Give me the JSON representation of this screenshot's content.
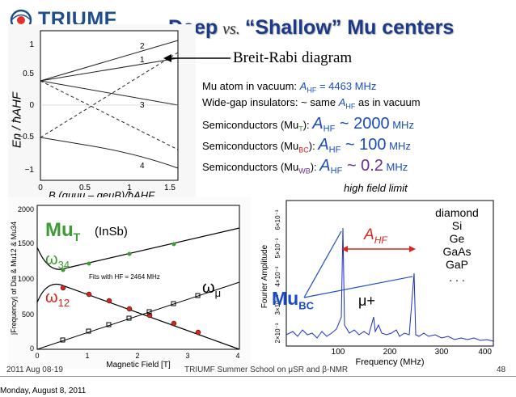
{
  "logo": {
    "name": "TRIUMF"
  },
  "title": {
    "deep": "Deep",
    "vs": "vs.",
    "shallow": "“Shallow” Mu centers"
  },
  "breit_rabi_label": "Breit-Rabi diagram",
  "info": {
    "line1_pre": "Mu atom in vacuum: ",
    "line1_a": "A",
    "line1_sub": "HF",
    "line1_val": " = 4463 MHz",
    "line2_pre": "Wide-gap insulators: ~ same ",
    "line2_a": "A",
    "line2_sub": "HF",
    "line2_post": " as in vacuum",
    "line3_pre": "Semiconductors (Mu",
    "line3_sub": "T",
    "line3_post": "):",
    "line3_a": "A",
    "line3_asub": "HF",
    "line3_val": " ~ 2000",
    "line3_unit": " MHz",
    "line4_pre": "Semiconductors (Mu",
    "line4_sub": "BC",
    "line4_post": "):",
    "line4_a": "A",
    "line4_asub": "HF",
    "line4_val": " ~ 100",
    "line4_unit": " MHz",
    "line5_pre": "Semiconductors (Mu",
    "line5_sub": "WB",
    "line5_post": "):",
    "line5_a": "A",
    "line5_asub": "HF",
    "line5_val": " ~ 0.2",
    "line5_unit": " MHz"
  },
  "high_field_limit": "high field limit",
  "materials": [
    "diamond",
    "Si",
    "Ge",
    "GaAs",
    "GaP",
    ". . ."
  ],
  "br_plot": {
    "ylabel": "En / ħAHF",
    "xlabel": "B (gμμμ – geμB)/ħAHF",
    "yticks": [
      "1",
      "0.5",
      "0",
      "−0.5",
      "−1"
    ],
    "xticks": [
      "0",
      "0.5",
      "1",
      "1.5"
    ],
    "level_labels": [
      "1",
      "2",
      "3",
      "4"
    ]
  },
  "mu_plot": {
    "label_mut": "Mu",
    "label_mut_sub": "T",
    "label_insb": "(InSb)",
    "label_w34": "ω",
    "label_w34_sub": "34",
    "label_w12": "ω",
    "label_w12_sub": "12",
    "label_wmu": "ω",
    "label_wmu_sub": "μ",
    "fit_text": "Fits with HF = 2464 MHz",
    "ylabel": "|Frequency| of Dia & Mu12 & Mu34",
    "xlabel": "Magnetic Field [T]",
    "yticks": [
      "0",
      "500",
      "1000",
      "1500",
      "2000"
    ],
    "xticks": [
      "0",
      "1",
      "2",
      "3",
      "4"
    ]
  },
  "fourier_plot": {
    "label_ahf": "A",
    "label_ahf_sub": "HF",
    "label_mubc": "Mu",
    "label_mubc_sub": "BC",
    "label_muplus": "μ+",
    "ylabel": "Fourier Amplitude",
    "xlabel": "Frequency (MHz)",
    "yticks": [
      "2×10⁻³",
      "3×10⁻³",
      "4×10⁻³",
      "5×10⁻³",
      "6×10⁻³"
    ],
    "xticks": [
      "100",
      "200",
      "300",
      "400"
    ]
  },
  "footer": {
    "left": "2011 Aug 08-19",
    "center": "TRIUMF Summer School on μSR and β-NMR",
    "page": "48"
  },
  "date_bottom": "Monday, August 8, 2011",
  "colors": {
    "title_blue": "#1b3a8c",
    "red": "#d9261c",
    "green": "#3c9b34",
    "purple": "#6b2c91",
    "accent_blue": "#1a4bc7"
  }
}
